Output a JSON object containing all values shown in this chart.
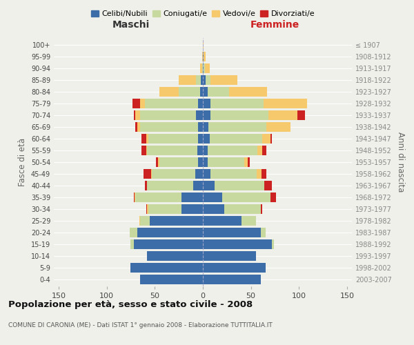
{
  "age_groups": [
    "0-4",
    "5-9",
    "10-14",
    "15-19",
    "20-24",
    "25-29",
    "30-34",
    "35-39",
    "40-44",
    "45-49",
    "50-54",
    "55-59",
    "60-64",
    "65-69",
    "70-74",
    "75-79",
    "80-84",
    "85-89",
    "90-94",
    "95-99",
    "100+"
  ],
  "birth_years": [
    "2003-2007",
    "1998-2002",
    "1993-1997",
    "1988-1992",
    "1983-1987",
    "1978-1982",
    "1973-1977",
    "1968-1972",
    "1963-1967",
    "1958-1962",
    "1953-1957",
    "1948-1952",
    "1943-1947",
    "1938-1942",
    "1933-1937",
    "1928-1932",
    "1923-1927",
    "1918-1922",
    "1913-1917",
    "1908-1912",
    "≤ 1907"
  ],
  "male": {
    "celibe": [
      65,
      75,
      58,
      72,
      68,
      55,
      22,
      22,
      10,
      8,
      5,
      6,
      5,
      5,
      7,
      5,
      3,
      2,
      0,
      0,
      0
    ],
    "coniugato": [
      0,
      0,
      0,
      3,
      8,
      10,
      35,
      48,
      48,
      45,
      40,
      52,
      52,
      60,
      58,
      55,
      22,
      5,
      1,
      0,
      0
    ],
    "vedovo": [
      0,
      0,
      0,
      0,
      0,
      1,
      1,
      1,
      0,
      1,
      2,
      1,
      2,
      3,
      5,
      5,
      20,
      18,
      2,
      1,
      0
    ],
    "divorziato": [
      0,
      0,
      0,
      0,
      0,
      0,
      1,
      1,
      2,
      8,
      2,
      5,
      5,
      2,
      2,
      8,
      0,
      0,
      0,
      0,
      0
    ]
  },
  "female": {
    "nubile": [
      60,
      65,
      55,
      72,
      60,
      40,
      22,
      20,
      12,
      8,
      5,
      5,
      7,
      6,
      8,
      8,
      5,
      3,
      1,
      1,
      0
    ],
    "coniugata": [
      0,
      0,
      0,
      2,
      5,
      15,
      38,
      50,
      52,
      48,
      38,
      52,
      55,
      60,
      60,
      55,
      22,
      5,
      1,
      0,
      0
    ],
    "vedova": [
      0,
      0,
      0,
      0,
      0,
      0,
      0,
      0,
      0,
      5,
      4,
      5,
      8,
      25,
      30,
      45,
      40,
      28,
      5,
      2,
      1
    ],
    "divorziata": [
      0,
      0,
      0,
      0,
      0,
      0,
      2,
      6,
      8,
      5,
      2,
      4,
      2,
      0,
      8,
      0,
      0,
      0,
      0,
      0,
      0
    ]
  },
  "colors": {
    "celibe": "#3d6da8",
    "coniugato": "#c8d9a0",
    "vedovo": "#f5c96c",
    "divorziato": "#cc2222"
  },
  "legend_labels": [
    "Celibi/Nubili",
    "Coniugati/e",
    "Vedovi/e",
    "Divorziati/e"
  ],
  "title": "Popolazione per età, sesso e stato civile - 2008",
  "subtitle": "COMUNE DI CARONIA (ME) - Dati ISTAT 1° gennaio 2008 - Elaborazione TUTTITALIA.IT",
  "xlabel_left": "Maschi",
  "xlabel_right": "Femmine",
  "ylabel_left": "Fasce di età",
  "ylabel_right": "Anni di nascita",
  "xlim": 155,
  "bg_color": "#f0f0eb"
}
